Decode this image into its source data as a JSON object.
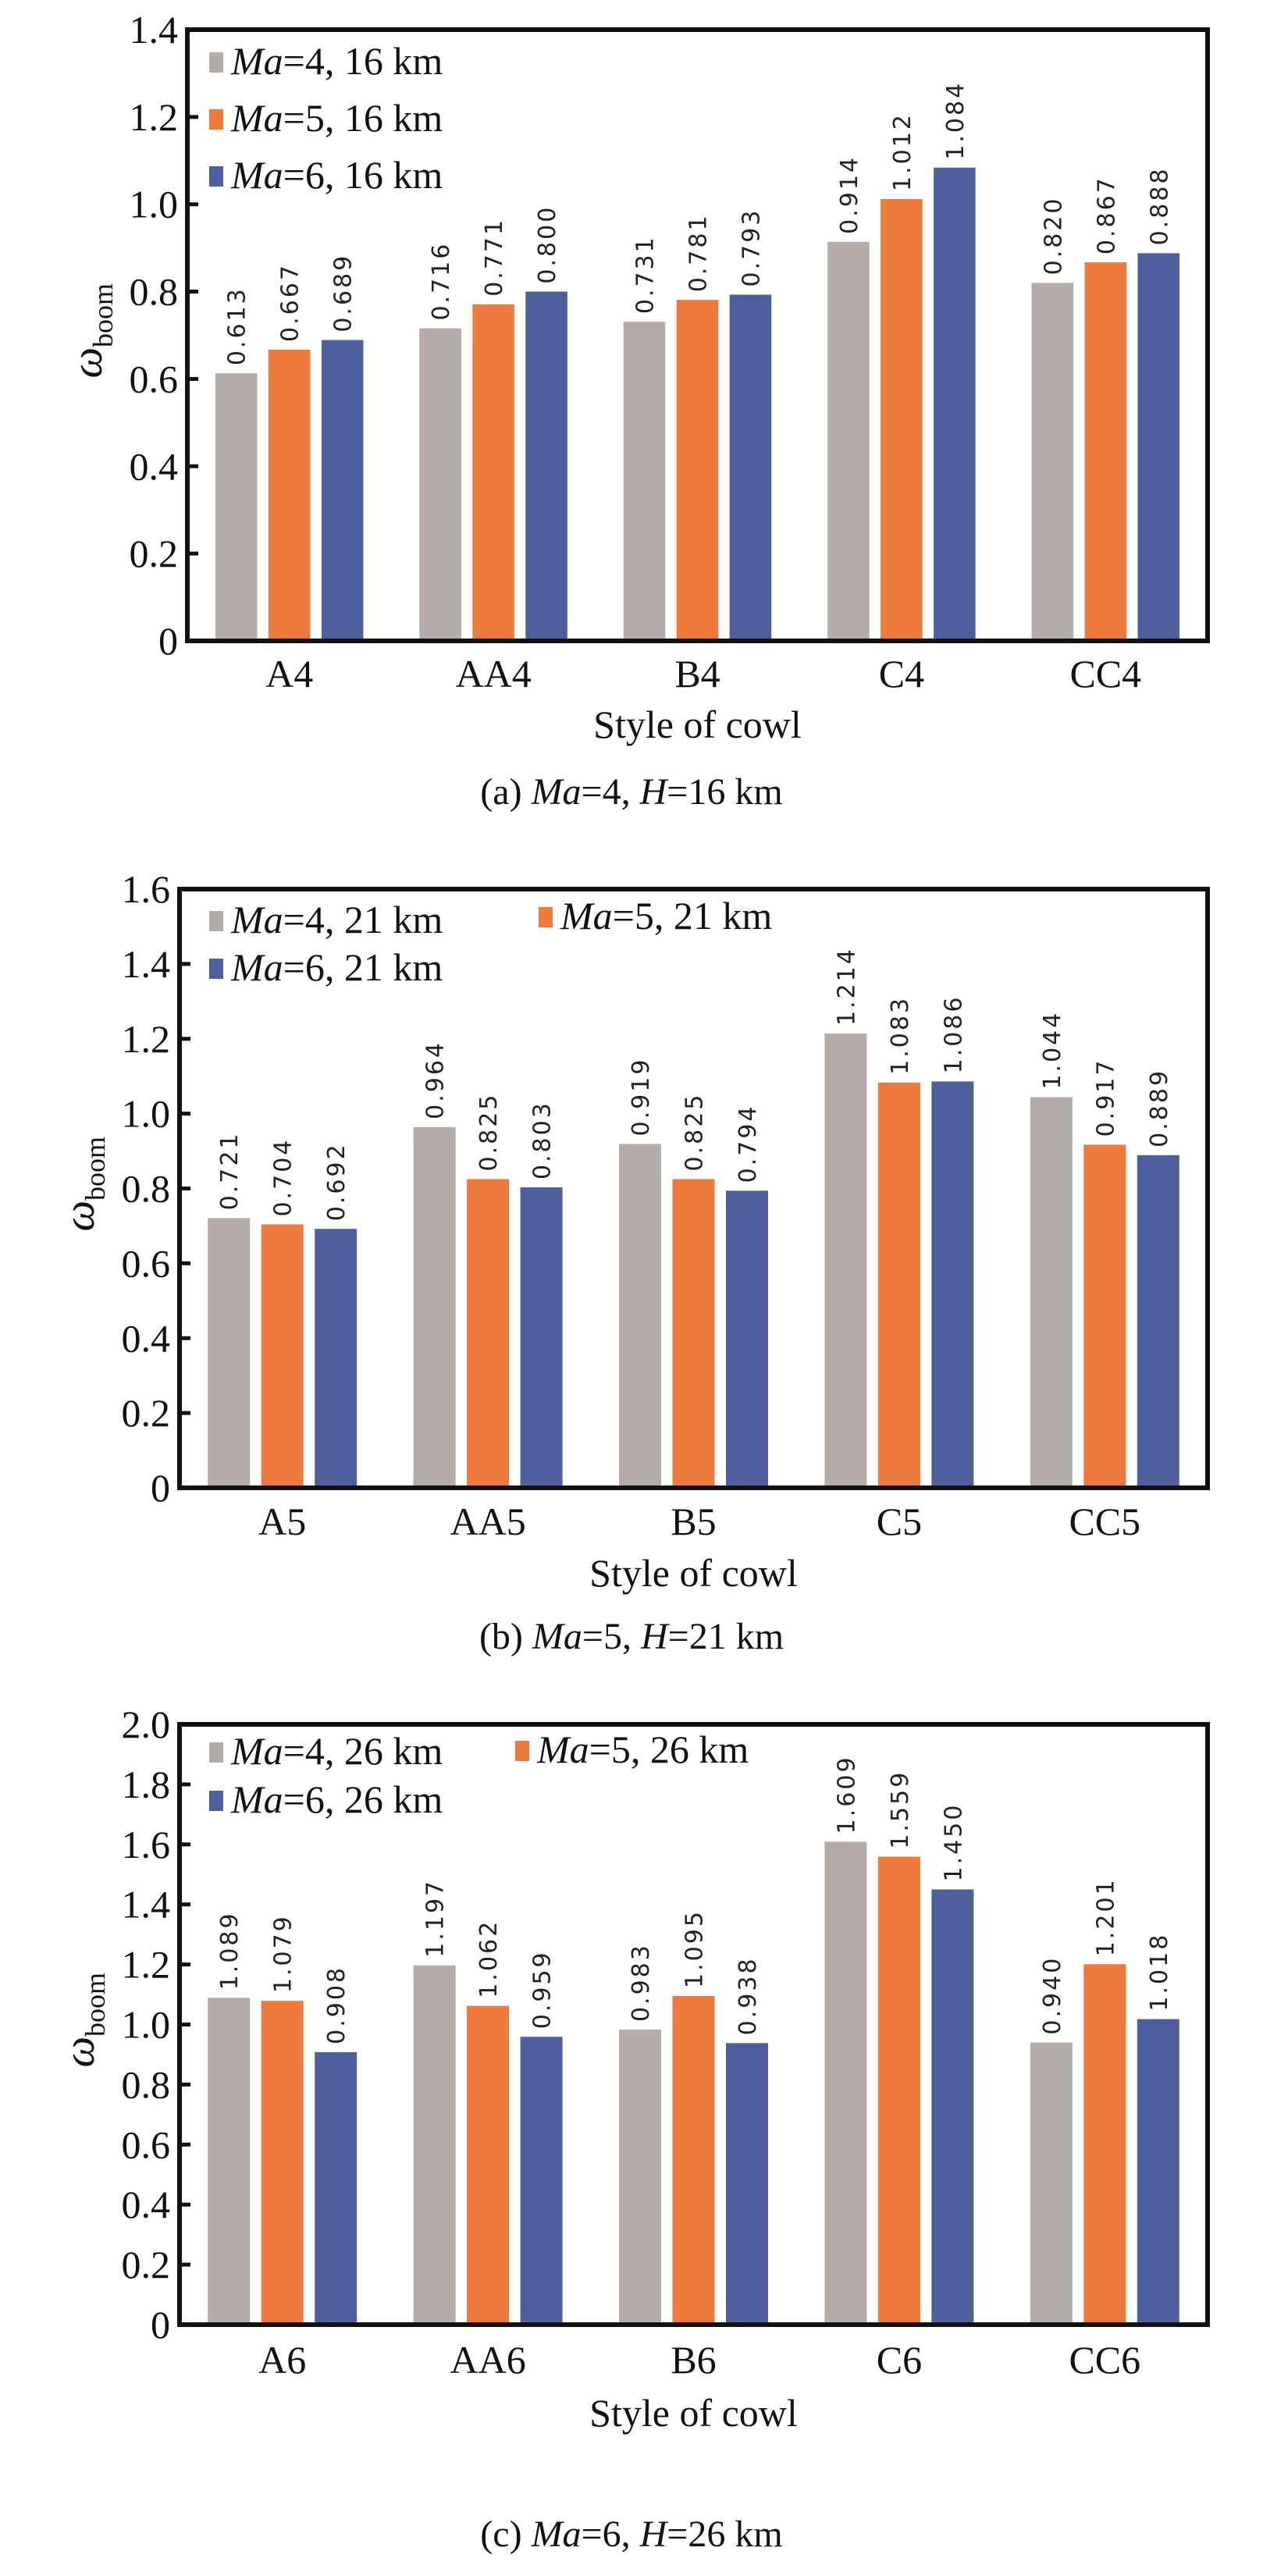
{
  "colors": {
    "Ma4": "#b4aca9",
    "Ma5": "#ee7a3e",
    "Ma6": "#4f5e9c"
  },
  "chart_data": [
    {
      "type": "bar",
      "caption": "(a) Ma=4, H=16 km",
      "xlabel": "Style of cowl",
      "ylabel": "ω",
      "ylabel_sub": "boom",
      "ylim": [
        0,
        1.4
      ],
      "yticks": [
        "0",
        "0.2",
        "0.4",
        "0.6",
        "0.8",
        "1.0",
        "1.2",
        "1.4"
      ],
      "categories": [
        "A4",
        "AA4",
        "B4",
        "C4",
        "CC4"
      ],
      "series": [
        {
          "name": "Ma=4, 16 km",
          "values": [
            0.613,
            0.716,
            0.731,
            0.914,
            0.82
          ],
          "labels": [
            "0.613",
            "0.716",
            "0.731",
            "0.914",
            "0.820"
          ]
        },
        {
          "name": "Ma=5, 16 km",
          "values": [
            0.667,
            0.771,
            0.781,
            1.012,
            0.867
          ],
          "labels": [
            "0.667",
            "0.771",
            "0.781",
            "1.012",
            "0.867"
          ]
        },
        {
          "name": "Ma=6, 16 km",
          "values": [
            0.689,
            0.8,
            0.793,
            1.084,
            0.888
          ],
          "labels": [
            "0.689",
            "0.800",
            "0.793",
            "1.084",
            "0.888"
          ]
        }
      ],
      "legend": "top-left"
    },
    {
      "type": "bar",
      "caption": "(b) Ma=5, H=21 km",
      "xlabel": "Style of cowl",
      "ylabel": "ω",
      "ylabel_sub": "boom",
      "ylim": [
        0,
        1.6
      ],
      "yticks": [
        "0",
        "0.2",
        "0.4",
        "0.6",
        "0.8",
        "1.0",
        "1.2",
        "1.4",
        "1.6"
      ],
      "categories": [
        "A5",
        "AA5",
        "B5",
        "C5",
        "CC5"
      ],
      "series": [
        {
          "name": "Ma=4, 21 km",
          "values": [
            0.721,
            0.964,
            0.919,
            1.214,
            1.044
          ],
          "labels": [
            "0.721",
            "0.964",
            "0.919",
            "1.214",
            "1.044"
          ]
        },
        {
          "name": "Ma=5, 21 km",
          "values": [
            0.704,
            0.825,
            0.825,
            1.083,
            0.917
          ],
          "labels": [
            "0.704",
            "0.825",
            "0.825",
            "1.083",
            "0.917"
          ]
        },
        {
          "name": "Ma=6, 21 km",
          "values": [
            0.692,
            0.803,
            0.794,
            1.086,
            0.889
          ],
          "labels": [
            "0.692",
            "0.803",
            "0.794",
            "1.086",
            "0.889"
          ]
        }
      ],
      "legend": "top-left"
    },
    {
      "type": "bar",
      "caption": "(c) Ma=6, H=26 km",
      "xlabel": "Style of cowl",
      "ylabel": "ω",
      "ylabel_sub": "boom",
      "ylim": [
        0,
        2.0
      ],
      "yticks": [
        "0",
        "0.2",
        "0.4",
        "0.6",
        "0.8",
        "1.0",
        "1.2",
        "1.4",
        "1.6",
        "1.8",
        "2.0"
      ],
      "categories": [
        "A6",
        "AA6",
        "B6",
        "C6",
        "CC6"
      ],
      "series": [
        {
          "name": "Ma=4, 26 km",
          "values": [
            1.089,
            1.197,
            0.983,
            1.609,
            0.94
          ],
          "labels": [
            "1.089",
            "1.197",
            "0.983",
            "1.609",
            "0.940"
          ]
        },
        {
          "name": "Ma=5, 26 km",
          "values": [
            1.079,
            1.062,
            1.095,
            1.559,
            1.201
          ],
          "labels": [
            "1.079",
            "1.062",
            "1.095",
            "1.559",
            "1.201"
          ]
        },
        {
          "name": "Ma=6, 26 km",
          "values": [
            0.908,
            0.959,
            0.938,
            1.45,
            1.018
          ],
          "labels": [
            "0.908",
            "0.959",
            "0.938",
            "1.450",
            "1.018"
          ]
        }
      ],
      "legend": "top-left"
    }
  ]
}
